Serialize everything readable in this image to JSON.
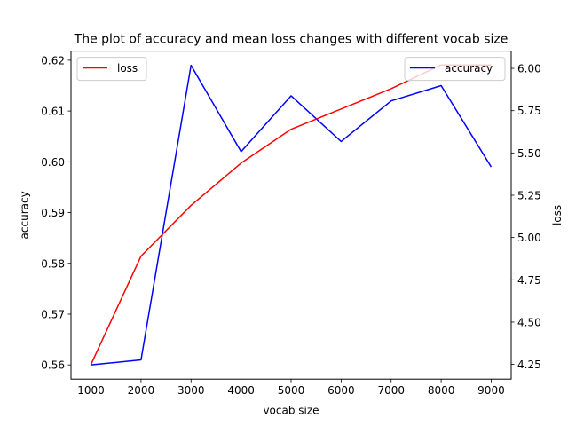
{
  "chart_data": {
    "type": "line",
    "title": "The plot of accuracy and mean loss changes with different vocab size",
    "xlabel": "vocab size",
    "ylabel_left": "accuracy",
    "ylabel_right": "loss",
    "x": [
      1000,
      2000,
      3000,
      4000,
      5000,
      6000,
      7000,
      8000,
      9000
    ],
    "x_ticks": [
      "1000",
      "2000",
      "3000",
      "4000",
      "5000",
      "6000",
      "7000",
      "8000",
      "9000"
    ],
    "ylim_left": [
      0.5572,
      0.6218
    ],
    "ylim_right": [
      4.163,
      6.102
    ],
    "y_ticks_left": [
      "0.56",
      "0.57",
      "0.58",
      "0.59",
      "0.60",
      "0.61",
      "0.62"
    ],
    "y_ticks_right": [
      "4.25",
      "4.50",
      "4.75",
      "5.00",
      "5.25",
      "5.50",
      "5.75",
      "6.00"
    ],
    "grid": false,
    "series": [
      {
        "name": "accuracy",
        "axis": "left",
        "color": "#0000ff",
        "values": [
          0.56,
          0.561,
          0.619,
          0.602,
          0.613,
          0.604,
          0.612,
          0.615,
          0.599
        ],
        "legend_position": "upper right"
      },
      {
        "name": "loss",
        "axis": "right",
        "color": "#ff0000",
        "values": [
          4.25,
          4.89,
          5.19,
          5.44,
          5.64,
          5.76,
          5.88,
          6.02,
          6.02
        ],
        "legend_position": "upper left"
      }
    ]
  }
}
